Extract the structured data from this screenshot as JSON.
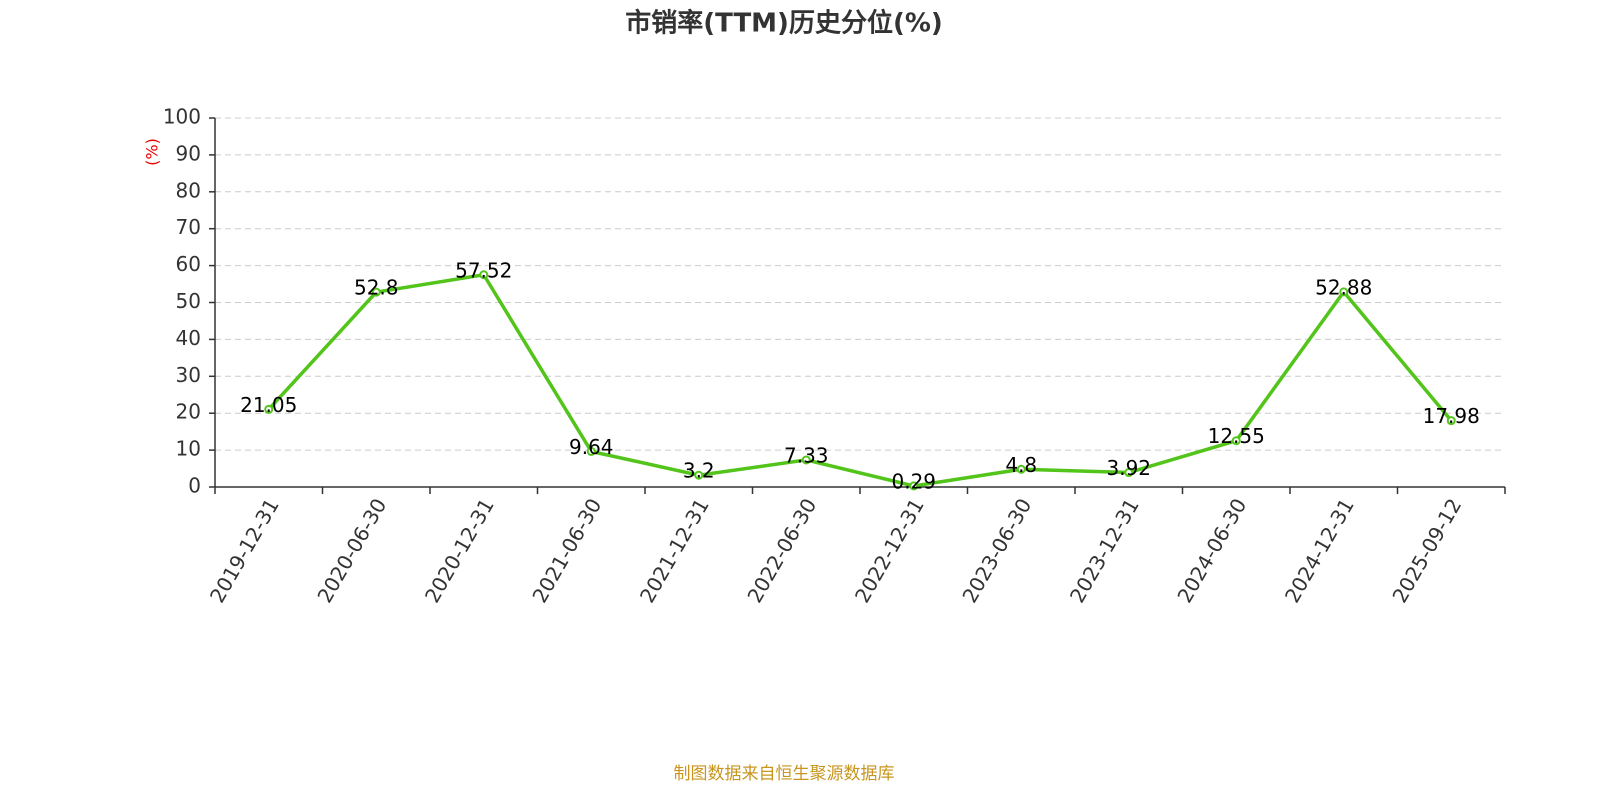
{
  "chart_data": {
    "type": "line",
    "title": "市销率(TTM)历史分位(%)",
    "y_label": "(%)",
    "source": "制图数据来自恒生聚源数据库",
    "categories": [
      "2019-12-31",
      "2020-06-30",
      "2020-12-31",
      "2021-06-30",
      "2021-12-31",
      "2022-06-30",
      "2022-12-31",
      "2023-06-30",
      "2023-12-31",
      "2024-06-30",
      "2024-12-31",
      "2025-09-12"
    ],
    "values": [
      21.05,
      52.8,
      57.52,
      9.64,
      3.2,
      7.33,
      0.29,
      4.8,
      3.92,
      12.55,
      52.88,
      17.98
    ],
    "color": "#52c41a",
    "ylim": [
      0,
      100
    ],
    "yticks": [
      0,
      10,
      20,
      30,
      40,
      50,
      60,
      70,
      80,
      90,
      100
    ],
    "grid": true
  }
}
